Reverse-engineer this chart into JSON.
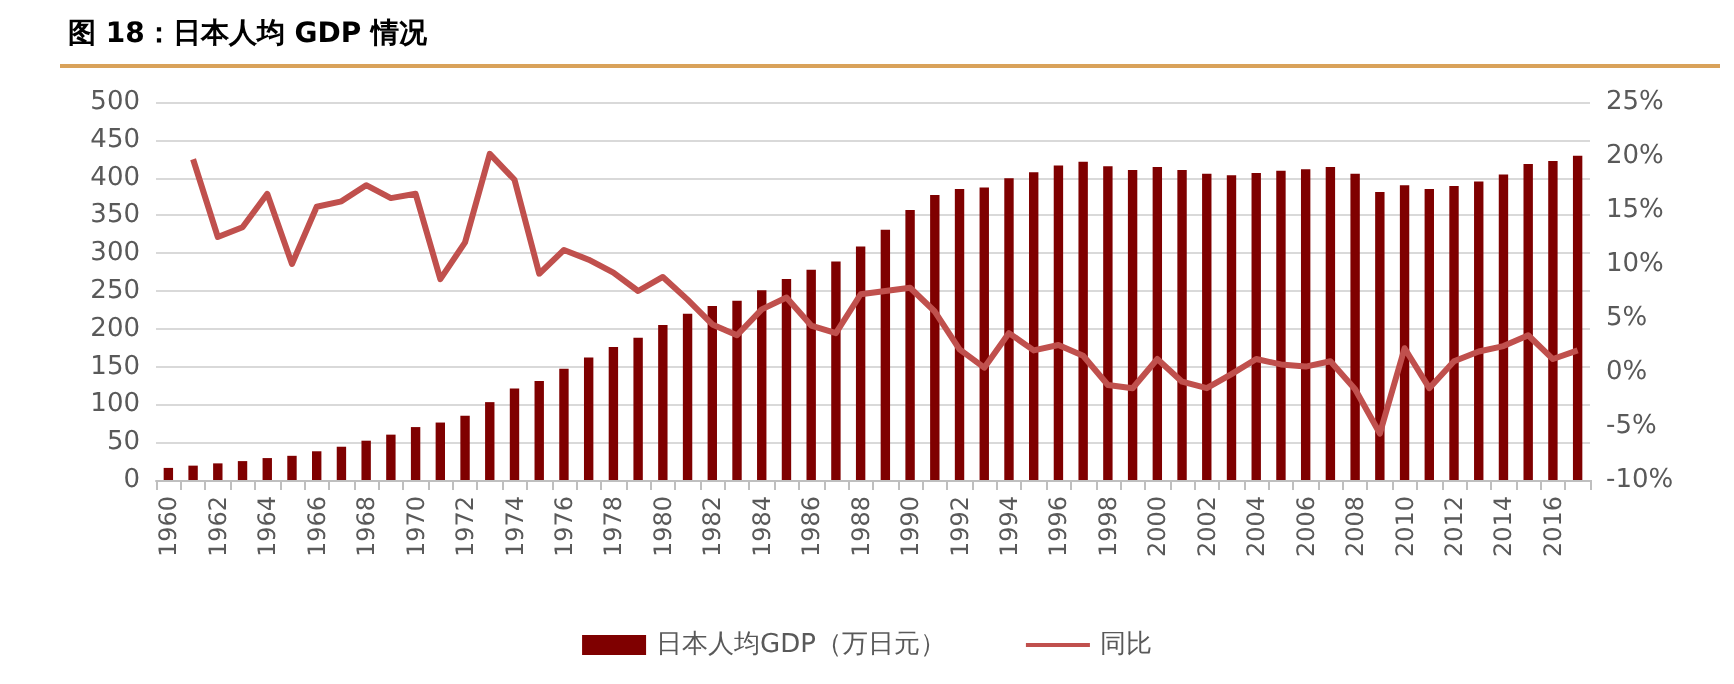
{
  "chart_data": {
    "type": "bar",
    "title": "图 18：日本人均 GDP 情况",
    "categories": [
      "1960",
      null,
      "1962",
      null,
      "1964",
      null,
      "1966",
      null,
      "1968",
      null,
      "1970",
      null,
      "1972",
      null,
      "1974",
      null,
      "1976",
      null,
      "1978",
      null,
      "1980",
      null,
      "1982",
      null,
      "1984",
      null,
      "1986",
      null,
      "1988",
      null,
      "1990",
      null,
      "1992",
      null,
      "1994",
      null,
      "1996",
      null,
      "1998",
      null,
      "2000",
      null,
      "2002",
      null,
      "2004",
      null,
      "2006",
      null,
      "2008",
      null,
      "2010",
      null,
      "2012",
      null,
      "2014",
      null,
      "2016",
      null
    ],
    "series": [
      {
        "name": "日本人均GDP（万日元）",
        "color": "#7f0000",
        "values": [
          16,
          19,
          22,
          25,
          29,
          32,
          38,
          44,
          52,
          60,
          70,
          76,
          85,
          103,
          121,
          131,
          147,
          162,
          176,
          188,
          205,
          220,
          230,
          237,
          251,
          266,
          278,
          289,
          309,
          331,
          357,
          377,
          385,
          387,
          399,
          407,
          416,
          421,
          415,
          410,
          414,
          410,
          405,
          403,
          406,
          409,
          411,
          414,
          405,
          381,
          390,
          385,
          389,
          395,
          404,
          418,
          422,
          429
        ]
      },
      {
        "name": "同比",
        "type": "line",
        "axis": "y2",
        "color": "#c0504d",
        "values": [
          null,
          19.7,
          12.5,
          13.4,
          16.5,
          10,
          15.3,
          15.8,
          17.3,
          16.1,
          16.5,
          8.6,
          12,
          20.2,
          17.8,
          9.1,
          11.3,
          10.4,
          9.2,
          7.5,
          8.8,
          6.7,
          4.4,
          3.4,
          5.8,
          6.9,
          4.3,
          3.6,
          7.2,
          7.5,
          7.8,
          5.6,
          2.1,
          0.4,
          3.6,
          2,
          2.5,
          1.5,
          -1.2,
          -1.5,
          1.2,
          -0.9,
          -1.5,
          -0.2,
          1.2,
          0.7,
          0.5,
          1,
          -1.6,
          -5.7,
          2.2,
          -1.5,
          1,
          1.9,
          2.4,
          3.4,
          1.2,
          2
        ]
      }
    ],
    "ylim": [
      0,
      500
    ],
    "yticks": [
      0,
      50,
      100,
      150,
      200,
      250,
      300,
      350,
      400,
      450,
      500
    ],
    "y2lim": [
      -10,
      25
    ],
    "y2ticks": [
      {
        "value": -10,
        "label": "-10%"
      },
      {
        "value": -5,
        "label": "-5%"
      },
      {
        "value": 0,
        "label": "0%"
      },
      {
        "value": 5,
        "label": "5%"
      },
      {
        "value": 10,
        "label": "10%"
      },
      {
        "value": 15,
        "label": "15%"
      },
      {
        "value": 20,
        "label": "20%"
      },
      {
        "value": 25,
        "label": "25%"
      }
    ],
    "grid": "y",
    "legend": "bottom",
    "marker": "none",
    "line_style": "solid"
  }
}
